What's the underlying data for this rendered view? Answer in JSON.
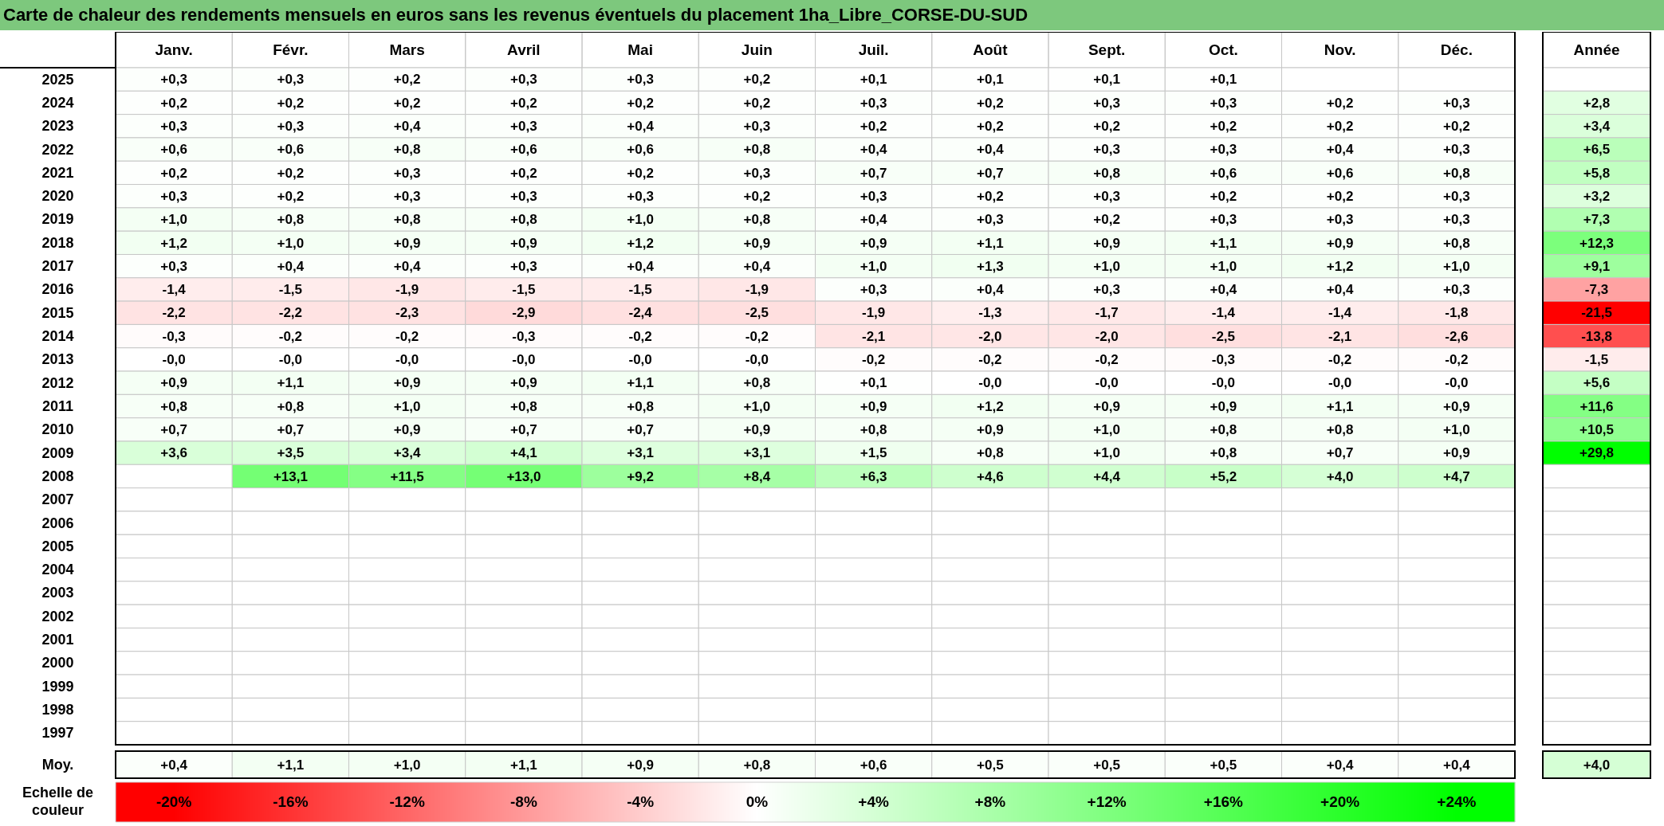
{
  "chart_data": {
    "type": "heatmap",
    "title": "Carte de chaleur des rendements mensuels en euros sans les revenus éventuels du placement 1ha_Libre_CORSE-DU-SUD",
    "categories": [
      "Janv.",
      "Févr.",
      "Mars",
      "Avril",
      "Mai",
      "Juin",
      "Juil.",
      "Août",
      "Sept.",
      "Oct.",
      "Nov.",
      "Déc.",
      "Année"
    ],
    "y_categories": [
      "2025",
      "2024",
      "2023",
      "2022",
      "2021",
      "2020",
      "2019",
      "2018",
      "2017",
      "2016",
      "2015",
      "2014",
      "2013",
      "2012",
      "2011",
      "2010",
      "2009",
      "2008",
      "2007",
      "2006",
      "2005",
      "2004",
      "2003",
      "2002",
      "2001",
      "2000",
      "1999",
      "1998",
      "1997",
      "Moy."
    ],
    "cells": [
      [
        0.3,
        0.3,
        0.2,
        0.3,
        0.3,
        0.2,
        0.1,
        0.1,
        0.1,
        0.1,
        null,
        null,
        null
      ],
      [
        0.2,
        0.2,
        0.2,
        0.2,
        0.2,
        0.2,
        0.3,
        0.2,
        0.3,
        0.3,
        0.2,
        0.3,
        2.8
      ],
      [
        0.3,
        0.3,
        0.4,
        0.3,
        0.4,
        0.3,
        0.2,
        0.2,
        0.2,
        0.2,
        0.2,
        0.2,
        3.4
      ],
      [
        0.6,
        0.6,
        0.8,
        0.6,
        0.6,
        0.8,
        0.4,
        0.4,
        0.3,
        0.3,
        0.4,
        0.3,
        6.5
      ],
      [
        0.2,
        0.2,
        0.3,
        0.2,
        0.2,
        0.3,
        0.7,
        0.7,
        0.8,
        0.6,
        0.6,
        0.8,
        5.8
      ],
      [
        0.3,
        0.2,
        0.3,
        0.3,
        0.3,
        0.2,
        0.3,
        0.2,
        0.3,
        0.2,
        0.2,
        0.3,
        3.2
      ],
      [
        1.0,
        0.8,
        0.8,
        0.8,
        1.0,
        0.8,
        0.4,
        0.3,
        0.2,
        0.3,
        0.3,
        0.3,
        7.3
      ],
      [
        1.2,
        1.0,
        0.9,
        0.9,
        1.2,
        0.9,
        0.9,
        1.1,
        0.9,
        1.1,
        0.9,
        0.8,
        12.3
      ],
      [
        0.3,
        0.4,
        0.4,
        0.3,
        0.4,
        0.4,
        1.0,
        1.3,
        1.0,
        1.0,
        1.2,
        1.0,
        9.1
      ],
      [
        -1.4,
        -1.5,
        -1.9,
        -1.5,
        -1.5,
        -1.9,
        0.3,
        0.4,
        0.3,
        0.4,
        0.4,
        0.3,
        -7.3
      ],
      [
        -2.2,
        -2.2,
        -2.3,
        -2.9,
        -2.4,
        -2.5,
        -1.9,
        -1.3,
        -1.7,
        -1.4,
        -1.4,
        -1.8,
        -21.5
      ],
      [
        -0.3,
        -0.2,
        -0.2,
        -0.3,
        -0.2,
        -0.2,
        -2.1,
        -2.0,
        -2.0,
        -2.5,
        -2.1,
        -2.6,
        -13.8
      ],
      [
        0,
        0,
        0,
        0,
        0,
        0,
        -0.2,
        -0.2,
        -0.2,
        -0.3,
        -0.2,
        -0.2,
        -1.5
      ],
      [
        0.9,
        1.1,
        0.9,
        0.9,
        1.1,
        0.8,
        0.1,
        0,
        0,
        0,
        0,
        0,
        5.6
      ],
      [
        0.8,
        0.8,
        1.0,
        0.8,
        0.8,
        1.0,
        0.9,
        1.2,
        0.9,
        0.9,
        1.1,
        0.9,
        11.6
      ],
      [
        0.7,
        0.7,
        0.9,
        0.7,
        0.7,
        0.9,
        0.8,
        0.9,
        1.0,
        0.8,
        0.8,
        1.0,
        10.5
      ],
      [
        3.6,
        3.5,
        3.4,
        4.1,
        3.1,
        3.1,
        1.5,
        0.8,
        1.0,
        0.8,
        0.7,
        0.9,
        29.8
      ],
      [
        null,
        13.1,
        11.5,
        13.0,
        9.2,
        8.4,
        6.3,
        4.6,
        4.4,
        5.2,
        4.0,
        4.7,
        null
      ],
      [
        null,
        null,
        null,
        null,
        null,
        null,
        null,
        null,
        null,
        null,
        null,
        null,
        null
      ],
      [
        null,
        null,
        null,
        null,
        null,
        null,
        null,
        null,
        null,
        null,
        null,
        null,
        null
      ],
      [
        null,
        null,
        null,
        null,
        null,
        null,
        null,
        null,
        null,
        null,
        null,
        null,
        null
      ],
      [
        null,
        null,
        null,
        null,
        null,
        null,
        null,
        null,
        null,
        null,
        null,
        null,
        null
      ],
      [
        null,
        null,
        null,
        null,
        null,
        null,
        null,
        null,
        null,
        null,
        null,
        null,
        null
      ],
      [
        null,
        null,
        null,
        null,
        null,
        null,
        null,
        null,
        null,
        null,
        null,
        null,
        null
      ],
      [
        null,
        null,
        null,
        null,
        null,
        null,
        null,
        null,
        null,
        null,
        null,
        null,
        null
      ],
      [
        null,
        null,
        null,
        null,
        null,
        null,
        null,
        null,
        null,
        null,
        null,
        null,
        null
      ],
      [
        null,
        null,
        null,
        null,
        null,
        null,
        null,
        null,
        null,
        null,
        null,
        null,
        null
      ],
      [
        null,
        null,
        null,
        null,
        null,
        null,
        null,
        null,
        null,
        null,
        null,
        null,
        null
      ],
      [
        null,
        null,
        null,
        null,
        null,
        null,
        null,
        null,
        null,
        null,
        null,
        null,
        null
      ],
      [
        0.4,
        1.1,
        1.0,
        1.1,
        0.9,
        0.8,
        0.6,
        0.5,
        0.5,
        0.5,
        0.4,
        0.4,
        4.0
      ]
    ],
    "cell_labels": [
      [
        "+0,3",
        "+0,3",
        "+0,2",
        "+0,3",
        "+0,3",
        "+0,2",
        "+0,1",
        "+0,1",
        "+0,1",
        "+0,1",
        null,
        null,
        null
      ],
      [
        "+0,2",
        "+0,2",
        "+0,2",
        "+0,2",
        "+0,2",
        "+0,2",
        "+0,3",
        "+0,2",
        "+0,3",
        "+0,3",
        "+0,2",
        "+0,3",
        "+2,8"
      ],
      [
        "+0,3",
        "+0,3",
        "+0,4",
        "+0,3",
        "+0,4",
        "+0,3",
        "+0,2",
        "+0,2",
        "+0,2",
        "+0,2",
        "+0,2",
        "+0,2",
        "+3,4"
      ],
      [
        "+0,6",
        "+0,6",
        "+0,8",
        "+0,6",
        "+0,6",
        "+0,8",
        "+0,4",
        "+0,4",
        "+0,3",
        "+0,3",
        "+0,4",
        "+0,3",
        "+6,5"
      ],
      [
        "+0,2",
        "+0,2",
        "+0,3",
        "+0,2",
        "+0,2",
        "+0,3",
        "+0,7",
        "+0,7",
        "+0,8",
        "+0,6",
        "+0,6",
        "+0,8",
        "+5,8"
      ],
      [
        "+0,3",
        "+0,2",
        "+0,3",
        "+0,3",
        "+0,3",
        "+0,2",
        "+0,3",
        "+0,2",
        "+0,3",
        "+0,2",
        "+0,2",
        "+0,3",
        "+3,2"
      ],
      [
        "+1,0",
        "+0,8",
        "+0,8",
        "+0,8",
        "+1,0",
        "+0,8",
        "+0,4",
        "+0,3",
        "+0,2",
        "+0,3",
        "+0,3",
        "+0,3",
        "+7,3"
      ],
      [
        "+1,2",
        "+1,0",
        "+0,9",
        "+0,9",
        "+1,2",
        "+0,9",
        "+0,9",
        "+1,1",
        "+0,9",
        "+1,1",
        "+0,9",
        "+0,8",
        "+12,3"
      ],
      [
        "+0,3",
        "+0,4",
        "+0,4",
        "+0,3",
        "+0,4",
        "+0,4",
        "+1,0",
        "+1,3",
        "+1,0",
        "+1,0",
        "+1,2",
        "+1,0",
        "+9,1"
      ],
      [
        "-1,4",
        "-1,5",
        "-1,9",
        "-1,5",
        "-1,5",
        "-1,9",
        "+0,3",
        "+0,4",
        "+0,3",
        "+0,4",
        "+0,4",
        "+0,3",
        "-7,3"
      ],
      [
        "-2,2",
        "-2,2",
        "-2,3",
        "-2,9",
        "-2,4",
        "-2,5",
        "-1,9",
        "-1,3",
        "-1,7",
        "-1,4",
        "-1,4",
        "-1,8",
        "-21,5"
      ],
      [
        "-0,3",
        "-0,2",
        "-0,2",
        "-0,3",
        "-0,2",
        "-0,2",
        "-2,1",
        "-2,0",
        "-2,0",
        "-2,5",
        "-2,1",
        "-2,6",
        "-13,8"
      ],
      [
        "-0,0",
        "-0,0",
        "-0,0",
        "-0,0",
        "-0,0",
        "-0,0",
        "-0,2",
        "-0,2",
        "-0,2",
        "-0,3",
        "-0,2",
        "-0,2",
        "-1,5"
      ],
      [
        "+0,9",
        "+1,1",
        "+0,9",
        "+0,9",
        "+1,1",
        "+0,8",
        "+0,1",
        "-0,0",
        "-0,0",
        "-0,0",
        "-0,0",
        "-0,0",
        "+5,6"
      ],
      [
        "+0,8",
        "+0,8",
        "+1,0",
        "+0,8",
        "+0,8",
        "+1,0",
        "+0,9",
        "+1,2",
        "+0,9",
        "+0,9",
        "+1,1",
        "+0,9",
        "+11,6"
      ],
      [
        "+0,7",
        "+0,7",
        "+0,9",
        "+0,7",
        "+0,7",
        "+0,9",
        "+0,8",
        "+0,9",
        "+1,0",
        "+0,8",
        "+0,8",
        "+1,0",
        "+10,5"
      ],
      [
        "+3,6",
        "+3,5",
        "+3,4",
        "+4,1",
        "+3,1",
        "+3,1",
        "+1,5",
        "+0,8",
        "+1,0",
        "+0,8",
        "+0,7",
        "+0,9",
        "+29,8"
      ],
      [
        null,
        "+13,1",
        "+11,5",
        "+13,0",
        "+9,2",
        "+8,4",
        "+6,3",
        "+4,6",
        "+4,4",
        "+5,2",
        "+4,0",
        "+4,7",
        null
      ],
      [
        null,
        null,
        null,
        null,
        null,
        null,
        null,
        null,
        null,
        null,
        null,
        null,
        null
      ],
      [
        null,
        null,
        null,
        null,
        null,
        null,
        null,
        null,
        null,
        null,
        null,
        null,
        null
      ],
      [
        null,
        null,
        null,
        null,
        null,
        null,
        null,
        null,
        null,
        null,
        null,
        null,
        null
      ],
      [
        null,
        null,
        null,
        null,
        null,
        null,
        null,
        null,
        null,
        null,
        null,
        null,
        null
      ],
      [
        null,
        null,
        null,
        null,
        null,
        null,
        null,
        null,
        null,
        null,
        null,
        null,
        null
      ],
      [
        null,
        null,
        null,
        null,
        null,
        null,
        null,
        null,
        null,
        null,
        null,
        null,
        null
      ],
      [
        null,
        null,
        null,
        null,
        null,
        null,
        null,
        null,
        null,
        null,
        null,
        null,
        null
      ],
      [
        null,
        null,
        null,
        null,
        null,
        null,
        null,
        null,
        null,
        null,
        null,
        null,
        null
      ],
      [
        null,
        null,
        null,
        null,
        null,
        null,
        null,
        null,
        null,
        null,
        null,
        null,
        null
      ],
      [
        null,
        null,
        null,
        null,
        null,
        null,
        null,
        null,
        null,
        null,
        null,
        null,
        null
      ],
      [
        null,
        null,
        null,
        null,
        null,
        null,
        null,
        null,
        null,
        null,
        null,
        null,
        null
      ],
      [
        "+0,4",
        "+1,1",
        "+1,0",
        "+1,1",
        "+0,9",
        "+0,8",
        "+0,6",
        "+0,5",
        "+0,5",
        "+0,5",
        "+0,4",
        "+0,4",
        "+4,0"
      ]
    ],
    "clabel": "Echelle de couleur",
    "clim": [
      -22,
      26
    ],
    "cticks": [
      {
        "value": -20,
        "label": "-20%"
      },
      {
        "value": -16,
        "label": "-16%"
      },
      {
        "value": -12,
        "label": "-12%"
      },
      {
        "value": -8,
        "label": "-8%"
      },
      {
        "value": -4,
        "label": "-4%"
      },
      {
        "value": 0,
        "label": "0%"
      },
      {
        "value": 4,
        "label": "+4%"
      },
      {
        "value": 8,
        "label": "+8%"
      },
      {
        "value": 12,
        "label": "+12%"
      },
      {
        "value": 16,
        "label": "+16%"
      },
      {
        "value": 20,
        "label": "+20%"
      },
      {
        "value": 24,
        "label": "+24%"
      }
    ]
  }
}
